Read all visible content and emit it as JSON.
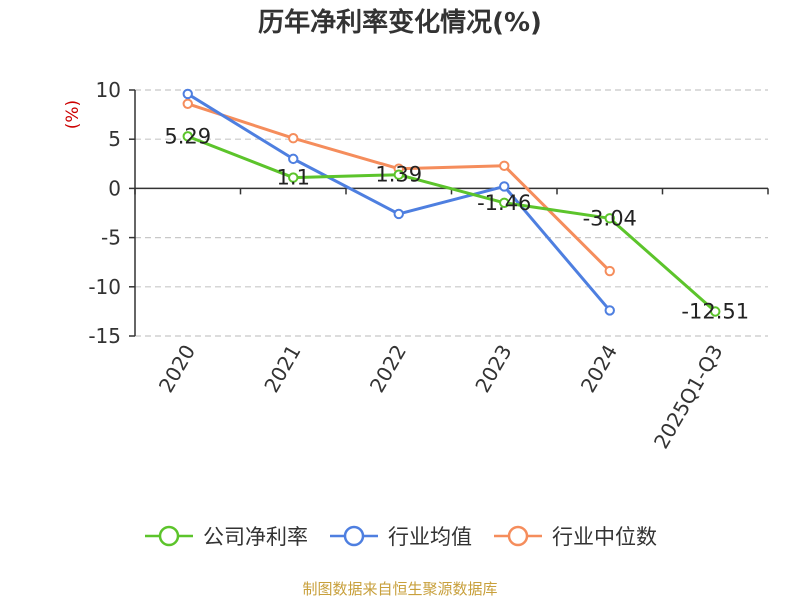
{
  "chart_data": {
    "type": "line",
    "title": "历年净利率变化情况(%)",
    "ylabel": "(%)",
    "xlabel": "",
    "categories": [
      "2020",
      "2021",
      "2022",
      "2023",
      "2024",
      "2025Q1-Q3"
    ],
    "ylim": [
      -15,
      10
    ],
    "yticks": [
      10,
      5,
      0,
      -5,
      -10,
      -15
    ],
    "grid": true,
    "legend_position": "bottom",
    "series": [
      {
        "name": "公司净利率",
        "color": "#5cc42b",
        "values": [
          5.29,
          1.1,
          1.39,
          -1.46,
          -3.04,
          -12.51
        ],
        "labels": [
          "5.29",
          "1.1",
          "1.39",
          "-1.46",
          "-3.04",
          "-12.51"
        ]
      },
      {
        "name": "行业均值",
        "color": "#4e7fe0",
        "values": [
          9.6,
          3.0,
          -2.6,
          0.2,
          -12.4,
          null
        ]
      },
      {
        "name": "行业中位数",
        "color": "#f58d5c",
        "values": [
          8.6,
          5.1,
          2.0,
          2.3,
          -8.4,
          null
        ]
      }
    ]
  },
  "source_note": "制图数据来自恒生聚源数据库",
  "colors": {
    "title": "#333333",
    "ylabel": "#cc0000",
    "axis": "#333333",
    "grid": "#c8c8c8",
    "source_note": "#c8a03c"
  }
}
